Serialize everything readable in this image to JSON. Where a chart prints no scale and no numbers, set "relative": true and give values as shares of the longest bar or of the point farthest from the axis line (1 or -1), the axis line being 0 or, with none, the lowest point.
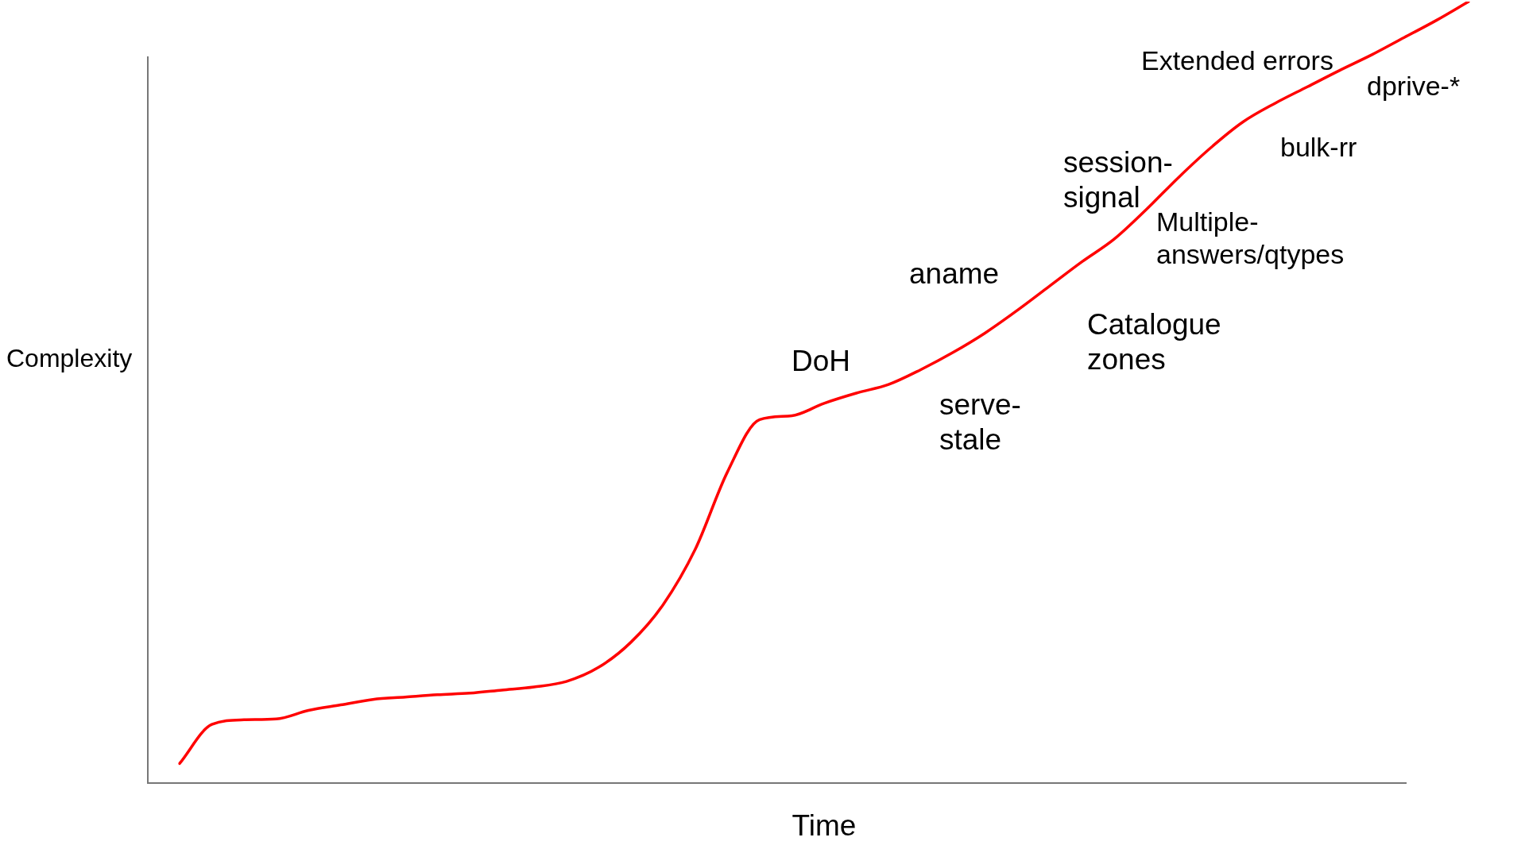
{
  "chart_data": {
    "type": "line",
    "relative": true,
    "xlabel": "Time",
    "ylabel": "Complexity",
    "categories": [
      null,
      null,
      null,
      null,
      null,
      null,
      null,
      null,
      null,
      null,
      null,
      null,
      null,
      null,
      null,
      null,
      null,
      null,
      null,
      null,
      null,
      null,
      null,
      null,
      null,
      null,
      null,
      null,
      null,
      null,
      null,
      null,
      null,
      null,
      null,
      null,
      null,
      null,
      null,
      null,
      null
    ],
    "series": [
      {
        "color": "#ff0000",
        "values": [
          0.025,
          0.075,
          0.081,
          0.082,
          0.093,
          0.1,
          0.107,
          0.11,
          0.113,
          0.115,
          0.119,
          0.123,
          0.13,
          0.148,
          0.18,
          0.228,
          0.299,
          0.398,
          0.465,
          0.47,
          0.486,
          0.499,
          0.51,
          0.529,
          0.551,
          0.576,
          0.605,
          0.636,
          0.667,
          0.696,
          0.734,
          0.775,
          0.813,
          0.846,
          0.87,
          0.891,
          0.912,
          0.932,
          0.954,
          0.976,
          1
        ]
      }
    ],
    "annotations": [
      "Extended errors",
      "dprive-*",
      "bulk-rr",
      "session-signal",
      "Multiple-answers/qtypes",
      "aname",
      "Catalogue zones",
      "DoH",
      "serve-stale"
    ]
  }
}
